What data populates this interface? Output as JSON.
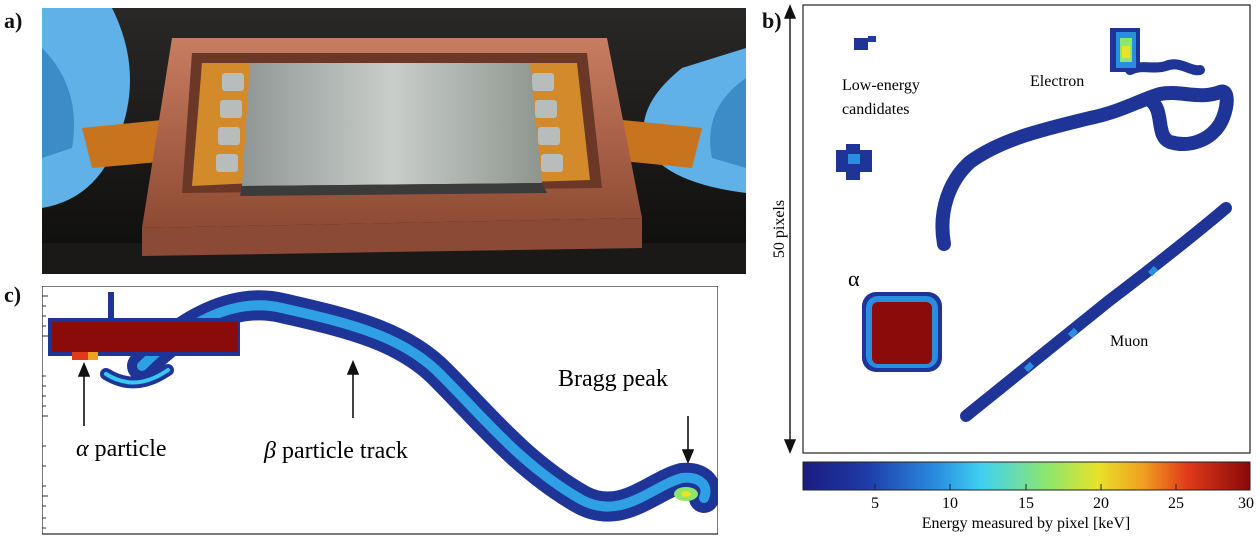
{
  "figure": {
    "panel_labels": {
      "a": "a)",
      "b": "b)",
      "c": "c)"
    }
  },
  "panel_b": {
    "annotations": {
      "low_energy_line1": "Low-energy",
      "low_energy_line2": "candidates",
      "electron": "Electron",
      "alpha": "α",
      "muon": "Muon"
    },
    "scale_label": "50 pixels"
  },
  "panel_c": {
    "annotations": {
      "alpha_symbol": "α",
      "alpha_word": " particle",
      "beta_symbol": "β",
      "beta_word": " particle track",
      "bragg": "Bragg peak"
    }
  },
  "colorbar": {
    "label": "Energy measured by pixel [keV]",
    "ticks": [
      "5",
      "10",
      "15",
      "20",
      "25",
      "30"
    ],
    "colormap": [
      "#1a1c80",
      "#1f3aa6",
      "#2a8ee0",
      "#3fd1f2",
      "#8ee66a",
      "#e8e22a",
      "#f0a020",
      "#e03a1a",
      "#8b0a0a"
    ]
  },
  "colors": {
    "copper": "#b5664a",
    "glove": "#5fb1e8",
    "sensor": "#a7acaa",
    "track_low": "#1e3597",
    "track_mid": "#2f9fe6",
    "track_hot": "#8b0000"
  }
}
